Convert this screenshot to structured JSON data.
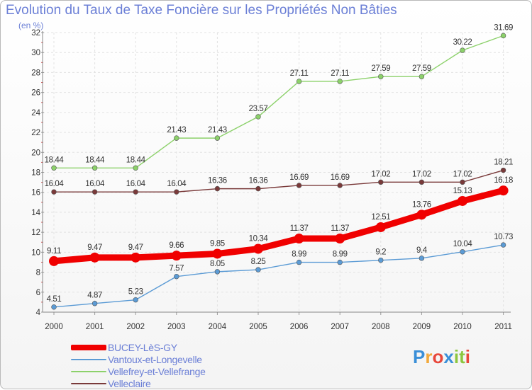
{
  "title": "Evolution du Taux de Taxe Foncière sur les Propriétés Non Bâties",
  "unit_label": "(en %)",
  "logo": {
    "letters": [
      "P",
      "r",
      "o",
      "x",
      "i",
      "t",
      "i"
    ],
    "colors": [
      "#3a8fd8",
      "#f2a93b",
      "#e8473b",
      "#3a8fd8",
      "#8cc63f",
      "#8cc63f",
      "#e8473b"
    ]
  },
  "chart_data": {
    "type": "line",
    "title": "Evolution du Taux de Taxe Foncière sur les Propriétés Non Bâties",
    "ylabel": "(en %)",
    "xlabel": "",
    "x": [
      "2000",
      "2001",
      "2002",
      "2003",
      "2004",
      "2005",
      "2006",
      "2007",
      "2008",
      "2009",
      "2010",
      "2011"
    ],
    "ylim": [
      4,
      32
    ],
    "yticks": [
      4,
      6,
      8,
      10,
      12,
      14,
      16,
      18,
      20,
      22,
      24,
      26,
      28,
      30,
      32
    ],
    "grid": true,
    "legend_position": "bottom-left",
    "series": [
      {
        "name": "BUCEY-LèS-GY",
        "color": "#f00000",
        "values": [
          9.11,
          9.47,
          9.47,
          9.66,
          9.85,
          10.34,
          11.37,
          11.37,
          12.51,
          13.76,
          15.13,
          16.18
        ],
        "labels": [
          "9.11",
          "9.47",
          "9.47",
          "9.66",
          "9.85",
          "10.34",
          "11.37",
          "11.37",
          "12.51",
          "13.76",
          "15.13",
          "16.18"
        ],
        "emphasis": true
      },
      {
        "name": "Vantoux-et-Longevelle",
        "color": "#5b9bd5",
        "values": [
          4.51,
          4.87,
          5.23,
          7.57,
          8.05,
          8.25,
          8.99,
          8.99,
          9.2,
          9.4,
          10.04,
          10.73
        ],
        "labels": [
          "4.51",
          "4.87",
          "5.23",
          "7.57",
          "8.05",
          "8.25",
          "8.99",
          "8.99",
          "9.2",
          "9.4",
          "10.04",
          "10.73"
        ],
        "emphasis": false
      },
      {
        "name": "Vellefrey-et-Vellefrange",
        "color": "#8cd16a",
        "values": [
          18.44,
          18.44,
          18.44,
          21.43,
          21.43,
          23.57,
          27.11,
          27.11,
          27.59,
          27.59,
          30.22,
          31.69
        ],
        "labels": [
          "18.44",
          "18.44",
          "18.44",
          "21.43",
          "21.43",
          "23.57",
          "27.11",
          "27.11",
          "27.59",
          "27.59",
          "30.22",
          "31.69"
        ],
        "emphasis": false
      },
      {
        "name": "Velleclaire",
        "color": "#7a3a3a",
        "values": [
          16.04,
          16.04,
          16.04,
          16.04,
          16.36,
          16.36,
          16.69,
          16.69,
          17.02,
          17.02,
          17.02,
          18.21
        ],
        "labels": [
          "16.04",
          "16.04",
          "16.04",
          "16.04",
          "16.36",
          "16.36",
          "16.69",
          "16.69",
          "17.02",
          "17.02",
          "17.02",
          "18.21"
        ],
        "emphasis": false
      }
    ]
  }
}
